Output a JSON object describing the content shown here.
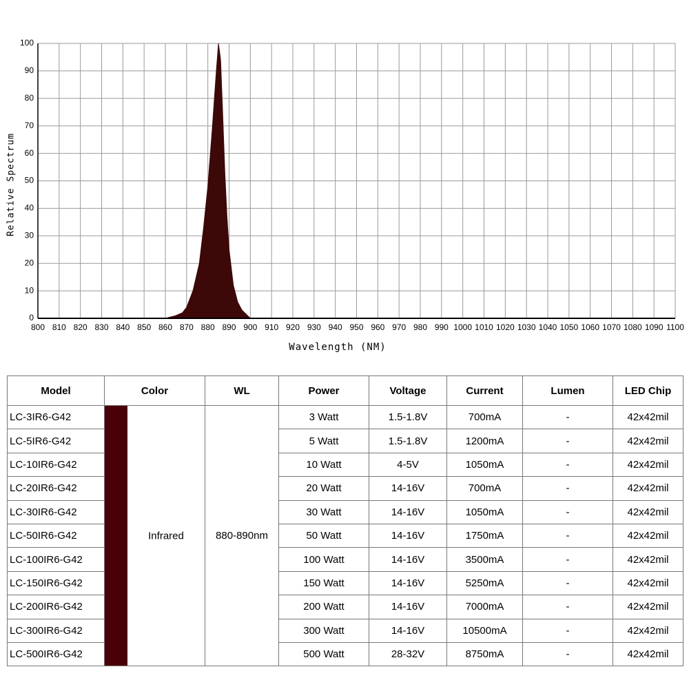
{
  "chart_data": {
    "type": "area",
    "xlabel": "Wavelength (NM)",
    "ylabel": "Relative Spectrum",
    "x": [
      800,
      860,
      865,
      868,
      870,
      873,
      876,
      878,
      880,
      882,
      884,
      885,
      886,
      887,
      888,
      889,
      890,
      892,
      894,
      896,
      900,
      1100
    ],
    "values": [
      0,
      0,
      1,
      2,
      4,
      10,
      20,
      33,
      48,
      68,
      90,
      100,
      94,
      74,
      53,
      37,
      25,
      12,
      6,
      3,
      0,
      0
    ],
    "color": "#3d0808",
    "xlim": [
      800,
      1100
    ],
    "xticks": [
      800,
      810,
      820,
      830,
      840,
      850,
      860,
      870,
      880,
      890,
      900,
      910,
      920,
      930,
      940,
      950,
      960,
      970,
      980,
      990,
      1000,
      1010,
      1020,
      1030,
      1040,
      1050,
      1060,
      1070,
      1080,
      1090,
      1100
    ],
    "ylim": [
      0,
      100
    ],
    "yticks": [
      0,
      10,
      20,
      30,
      40,
      50,
      60,
      70,
      80,
      90,
      100
    ],
    "grid": true
  },
  "table": {
    "headers": [
      "Model",
      "Color",
      "WL",
      "Power",
      "Voltage",
      "Current",
      "Lumen",
      "LED Chip"
    ],
    "color": "Infrared",
    "swatch_color": "#4a0008",
    "wl": "880-890nm",
    "rows": [
      [
        "LC-3IR6-G42",
        "3 Watt",
        "1.5-1.8V",
        "700mA",
        "-",
        "42x42mil"
      ],
      [
        "LC-5IR6-G42",
        "5 Watt",
        "1.5-1.8V",
        "1200mA",
        "-",
        "42x42mil"
      ],
      [
        "LC-10IR6-G42",
        "10 Watt",
        "4-5V",
        "1050mA",
        "-",
        "42x42mil"
      ],
      [
        "LC-20IR6-G42",
        "20 Watt",
        "14-16V",
        "700mA",
        "-",
        "42x42mil"
      ],
      [
        "LC-30IR6-G42",
        "30 Watt",
        "14-16V",
        "1050mA",
        "-",
        "42x42mil"
      ],
      [
        "LC-50IR6-G42",
        "50 Watt",
        "14-16V",
        "1750mA",
        "-",
        "42x42mil"
      ],
      [
        "LC-100IR6-G42",
        "100 Watt",
        "14-16V",
        "3500mA",
        "-",
        "42x42mil"
      ],
      [
        "LC-150IR6-G42",
        "150 Watt",
        "14-16V",
        "5250mA",
        "-",
        "42x42mil"
      ],
      [
        "LC-200IR6-G42",
        "200 Watt",
        "14-16V",
        "7000mA",
        "-",
        "42x42mil"
      ],
      [
        "LC-300IR6-G42",
        "300 Watt",
        "14-16V",
        "10500mA",
        "-",
        "42x42mil"
      ],
      [
        "LC-500IR6-G42",
        "500 Watt",
        "28-32V",
        "8750mA",
        "-",
        "42x42mil"
      ]
    ]
  }
}
